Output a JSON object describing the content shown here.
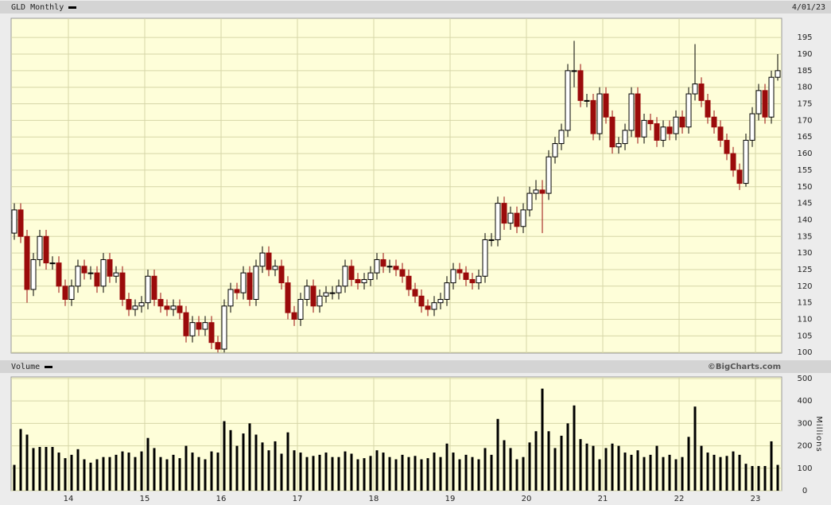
{
  "chart_data": [
    {
      "type": "candlestick",
      "title": "GLD Monthly",
      "date": "4/01/23",
      "categories": [
        null,
        null,
        null,
        null,
        null,
        null,
        null,
        null,
        null,
        "14",
        null,
        null,
        null,
        null,
        null,
        null,
        null,
        null,
        null,
        null,
        null,
        "15",
        null,
        null,
        null,
        null,
        null,
        null,
        null,
        null,
        null,
        null,
        null,
        "16",
        null,
        null,
        null,
        null,
        null,
        null,
        null,
        null,
        null,
        null,
        null,
        "17",
        null,
        null,
        null,
        null,
        null,
        null,
        null,
        null,
        null,
        null,
        null,
        "18",
        null,
        null,
        null,
        null,
        null,
        null,
        null,
        null,
        null,
        null,
        null,
        "19",
        null,
        null,
        null,
        null,
        null,
        null,
        null,
        null,
        null,
        null,
        null,
        "20",
        null,
        null,
        null,
        null,
        null,
        null,
        null,
        null,
        null,
        null,
        null,
        "21",
        null,
        null,
        null,
        null,
        null,
        null,
        null,
        null,
        null,
        null,
        null,
        "22",
        null,
        null,
        null,
        null,
        null,
        null,
        null,
        null,
        null,
        null,
        null,
        "23",
        null,
        null,
        null
      ],
      "open": [
        136,
        143,
        135,
        119,
        128,
        135,
        127,
        127,
        120,
        116,
        120,
        126,
        124,
        124,
        120,
        128,
        123,
        124,
        116,
        113,
        114,
        115,
        123,
        116,
        114,
        113,
        114,
        112,
        105,
        109,
        107,
        109,
        103,
        101,
        114,
        119,
        118,
        124,
        116,
        126,
        130,
        125,
        126,
        121,
        112,
        110,
        116,
        120,
        114,
        117,
        118,
        118,
        120,
        126,
        122,
        121,
        122,
        124,
        128,
        126,
        126,
        125,
        123,
        119,
        117,
        114,
        113,
        115,
        116,
        121,
        125,
        124,
        122,
        121,
        123,
        134,
        134,
        145,
        139,
        142,
        138,
        143,
        148,
        149,
        148,
        159,
        163,
        167,
        185,
        185,
        176,
        176,
        166,
        178,
        171,
        162,
        163,
        167,
        178,
        165,
        170,
        169,
        164,
        168,
        166,
        171,
        168,
        178,
        181,
        176,
        171,
        168,
        164,
        160,
        155,
        151,
        164,
        172,
        179,
        171,
        183
      ],
      "high": [
        145,
        145,
        137,
        130,
        137,
        137,
        129,
        129,
        122,
        122,
        128,
        128,
        126,
        126,
        130,
        130,
        126,
        126,
        118,
        116,
        117,
        125,
        125,
        118,
        116,
        116,
        116,
        114,
        111,
        111,
        111,
        111,
        105,
        116,
        121,
        121,
        126,
        126,
        128,
        132,
        132,
        128,
        128,
        123,
        114,
        118,
        122,
        122,
        119,
        120,
        120,
        122,
        128,
        128,
        124,
        124,
        126,
        130,
        130,
        128,
        128,
        127,
        125,
        121,
        119,
        116,
        117,
        118,
        123,
        127,
        127,
        126,
        124,
        125,
        136,
        136,
        147,
        147,
        144,
        144,
        145,
        150,
        152,
        152,
        161,
        165,
        169,
        187,
        194,
        187,
        178,
        178,
        180,
        180,
        173,
        165,
        169,
        180,
        180,
        172,
        172,
        171,
        170,
        170,
        173,
        173,
        180,
        193,
        183,
        178,
        173,
        170,
        166,
        162,
        157,
        166,
        174,
        181,
        181,
        185,
        190
      ],
      "low": [
        134,
        133,
        115,
        117,
        126,
        125,
        125,
        118,
        114,
        114,
        118,
        122,
        122,
        118,
        118,
        121,
        121,
        114,
        111,
        111,
        112,
        113,
        114,
        112,
        111,
        111,
        110,
        103,
        103,
        105,
        105,
        101,
        100,
        100,
        112,
        116,
        116,
        114,
        114,
        124,
        123,
        123,
        119,
        110,
        108,
        108,
        114,
        112,
        112,
        115,
        116,
        116,
        118,
        120,
        119,
        119,
        120,
        122,
        124,
        124,
        123,
        121,
        117,
        115,
        112,
        111,
        111,
        113,
        114,
        119,
        122,
        120,
        119,
        119,
        121,
        132,
        132,
        137,
        137,
        136,
        136,
        141,
        146,
        136,
        146,
        157,
        161,
        165,
        180,
        174,
        174,
        164,
        164,
        169,
        160,
        160,
        161,
        165,
        163,
        163,
        167,
        162,
        162,
        164,
        164,
        166,
        166,
        176,
        174,
        169,
        166,
        162,
        158,
        153,
        149,
        150,
        162,
        170,
        169,
        169,
        182
      ],
      "close": [
        143,
        135,
        119,
        128,
        135,
        127,
        127,
        120,
        116,
        120,
        126,
        124,
        124,
        120,
        128,
        123,
        124,
        116,
        113,
        114,
        115,
        123,
        116,
        114,
        113,
        114,
        112,
        105,
        109,
        107,
        109,
        103,
        101,
        114,
        119,
        118,
        124,
        116,
        126,
        130,
        125,
        126,
        121,
        112,
        110,
        116,
        120,
        114,
        117,
        118,
        118,
        120,
        126,
        122,
        121,
        122,
        124,
        128,
        126,
        126,
        125,
        123,
        119,
        117,
        114,
        113,
        115,
        116,
        121,
        125,
        124,
        122,
        121,
        123,
        134,
        134,
        145,
        139,
        142,
        138,
        143,
        148,
        149,
        148,
        159,
        163,
        167,
        185,
        185,
        176,
        176,
        166,
        178,
        171,
        162,
        163,
        167,
        178,
        165,
        170,
        169,
        164,
        168,
        166,
        171,
        168,
        178,
        181,
        176,
        171,
        168,
        164,
        160,
        155,
        151,
        164,
        172,
        179,
        171,
        183,
        185
      ],
      "up_color": "#ffffff",
      "down_color": "#9b0b0b",
      "ylim": [
        99.8,
        200.8
      ],
      "yticks": [
        100,
        105,
        110,
        115,
        120,
        125,
        130,
        135,
        140,
        145,
        150,
        155,
        160,
        165,
        170,
        175,
        180,
        185,
        190,
        195
      ],
      "grid": true
    },
    {
      "type": "bar",
      "title": "Volume",
      "credit": "©BigCharts.com",
      "y_label": "Millions",
      "values": [
        115,
        275,
        250,
        190,
        195,
        195,
        195,
        170,
        145,
        160,
        185,
        140,
        125,
        140,
        150,
        150,
        160,
        175,
        170,
        150,
        175,
        235,
        190,
        150,
        140,
        160,
        145,
        200,
        170,
        150,
        140,
        175,
        170,
        310,
        270,
        200,
        255,
        300,
        250,
        215,
        180,
        220,
        165,
        260,
        180,
        170,
        150,
        155,
        160,
        170,
        150,
        150,
        175,
        165,
        140,
        145,
        155,
        180,
        170,
        150,
        140,
        160,
        150,
        155,
        140,
        145,
        170,
        150,
        210,
        170,
        140,
        160,
        150,
        140,
        190,
        160,
        320,
        225,
        190,
        140,
        150,
        215,
        265,
        455,
        265,
        190,
        245,
        300,
        380,
        230,
        210,
        200,
        140,
        190,
        210,
        200,
        170,
        160,
        180,
        150,
        160,
        200,
        150,
        160,
        140,
        150,
        240,
        375,
        200,
        170,
        160,
        150,
        155,
        175,
        160,
        120,
        110,
        110,
        110,
        220,
        115
      ],
      "color": "#000000",
      "ylim": [
        0,
        507
      ],
      "yticks": [
        0,
        100,
        200,
        300,
        400,
        500
      ],
      "grid": true
    }
  ]
}
